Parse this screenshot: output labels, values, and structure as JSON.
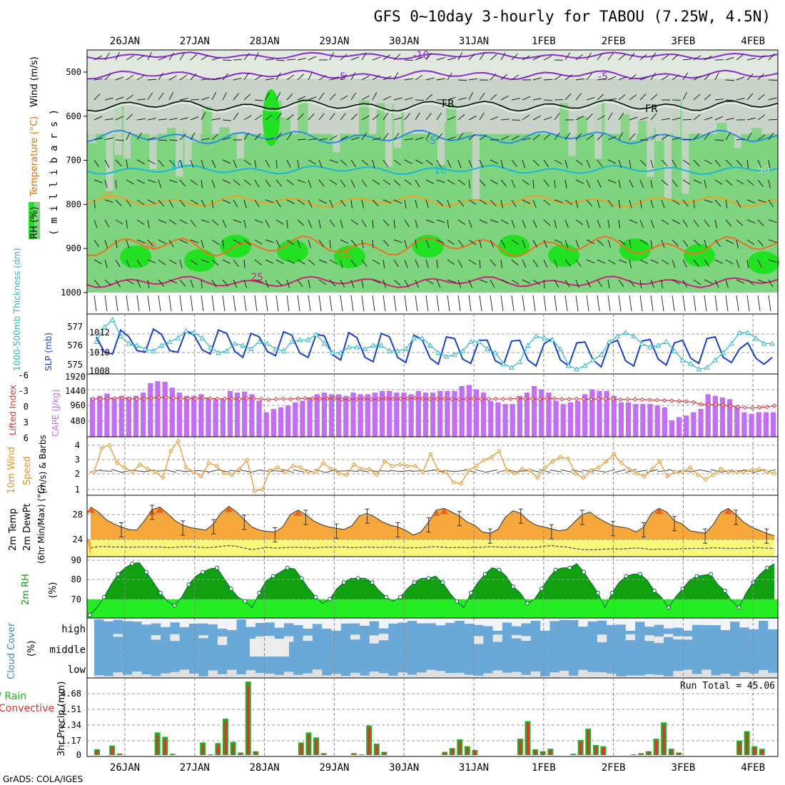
{
  "title": "GFS 0~10day 3-hourly for TABOU (7.25W, 4.5N)",
  "dates": [
    "26JAN",
    "27JAN",
    "28JAN",
    "29JAN",
    "30JAN",
    "31JAN",
    "1FEB",
    "2FEB",
    "3FEB",
    "4FEB"
  ],
  "credit": "GrADS: COLA/IGES",
  "colors": {
    "rh_dark": "#5fb85f",
    "rh_mid": "#7fd47f",
    "rh_light": "#c7d4c7",
    "rh_bright": "#22e022",
    "temp_purple": "#8a2ccf",
    "temp_black": "#000000",
    "temp_blue": "#2a8ee0",
    "temp_cyan": "#1ab7d6",
    "temp_orange": "#f0a020",
    "temp_darkorange": "#f07020",
    "temp_magenta": "#d0207a",
    "slp": "#1840d0",
    "thickness": "#2ab8c8",
    "cape": "#c070f0",
    "li": "#e03030",
    "wind": "#f0901c",
    "temp2m": "#f7a83a",
    "temp2m_peak": "#f06010",
    "dew": "#f7f77c",
    "rh2m_dark": "#10a010",
    "rh2m_light": "#22ee22",
    "cloud": "#6aa8d8",
    "cloud_gap": "#f3f3fa",
    "precip_total": "#22b022",
    "precip_conv": "#e03030"
  },
  "panels": {
    "upper": {
      "ylabel_rh": "RH (%)",
      "ylabel_temp": "Temperature (°C)",
      "ylabel_wind": "Wind (m/s)",
      "ylabel_mb": "( m i l l i b a r s )",
      "ticks": [
        "500",
        "600",
        "700",
        "800",
        "900",
        "1000"
      ],
      "contour_labels": [
        {
          "text": "-10",
          "color": "temp_purple"
        },
        {
          "text": "-5",
          "color": "temp_purple"
        },
        {
          "text": "-5",
          "color": "temp_purple"
        },
        {
          "text": "FR",
          "color": "temp_black"
        },
        {
          "text": "FR",
          "color": "temp_black"
        },
        {
          "text": "-5",
          "color": "temp_blue"
        },
        {
          "text": "10",
          "color": "temp_cyan"
        },
        {
          "text": "10",
          "color": "temp_cyan"
        },
        {
          "text": "15",
          "color": "temp_orange"
        },
        {
          "text": "15",
          "color": "temp_orange"
        },
        {
          "text": "20",
          "color": "temp_darkorange"
        },
        {
          "text": "20",
          "color": "temp_darkorange"
        },
        {
          "text": "25",
          "color": "temp_magenta"
        },
        {
          "text": "90",
          "color": "rh_light"
        },
        {
          "text": "50",
          "color": "rh_light"
        }
      ]
    },
    "slp": {
      "ylabel_thick": "1000-500mb Thickness (dm)",
      "ylabel_slp": "SLP (mb)",
      "left_ticks": [
        "577",
        "576",
        "575"
      ],
      "right_ticks": [
        "1012",
        "1010",
        "1008"
      ]
    },
    "cape": {
      "ylabel_li": "Lifted Index",
      "ylabel_cape": "CAPE (J/kg)",
      "left_ticks": [
        "-6",
        "-3",
        "0",
        "3",
        "6"
      ],
      "right_ticks": [
        "1920",
        "1440",
        "960",
        "480"
      ]
    },
    "wind": {
      "ylabel1": "10m Wind",
      "ylabel2": "Speed",
      "ylabel3": "(m/s) & Barbs",
      "ticks": [
        "4",
        "3",
        "2",
        "1"
      ]
    },
    "temp": {
      "ylabel1": "2m Temp",
      "ylabel2": "2m DewPt",
      "ylabel3": "(6hr Min/Max) (°C)",
      "ticks": [
        "28",
        "24"
      ]
    },
    "rh": {
      "ylabel1": "2m RH",
      "ylabel2": "(%)",
      "ticks": [
        "90",
        "80",
        "70"
      ]
    },
    "cloud": {
      "ylabel1": "Cloud Cover",
      "ylabel2": "(%)",
      "levels": [
        "high",
        "middle",
        "low"
      ]
    },
    "precip": {
      "ylabel1": "Total / Rain",
      "ylabel2": "Convective",
      "ylabel3": "3hr Precip (mm)",
      "ticks": [
        "4.68",
        "3.51",
        "2.34",
        "1.17",
        "0"
      ],
      "run_total": "Run Total = 45.06"
    }
  },
  "chart_data": [
    {
      "type": "line",
      "name": "SLP (mb)",
      "x_units": "3-hourly steps from 25JAN 18Z",
      "ylim": [
        1008,
        1014
      ],
      "values": [
        1012,
        1010.2,
        1010,
        1012.8,
        1012,
        1010.4,
        1010.2,
        1012.9,
        1012.3,
        1010.4,
        1010.2,
        1012.7,
        1012.2,
        1010.5,
        1010,
        1012.8,
        1012.4,
        1010.3,
        1009.6,
        1012.4,
        1012,
        1010.3,
        1009.8,
        1012.6,
        1012.2,
        1010.1,
        1009.6,
        1012.3,
        1012.1,
        1009.9,
        1009.3,
        1012.5,
        1011.9,
        1009.6,
        1009.1,
        1012.4,
        1012,
        1009.6,
        1009,
        1012.2,
        1011.7,
        1009.5,
        1008.8,
        1012,
        1011.8,
        1009.4,
        1008.9,
        1011.6,
        1011.6,
        1009.2,
        1008.7,
        1011.5,
        1011.6,
        1009.3,
        1008.6,
        1011.2,
        1011.8,
        1009.3,
        1008.6,
        1011.3,
        1011.4,
        1009.3,
        1008.5,
        1011.2,
        1011.6,
        1009.2,
        1008.6,
        1011.5,
        1011.7,
        1009.4,
        1008.7,
        1011.3,
        1011.6,
        1009.5,
        1008.9,
        1011.8,
        1012,
        1009.6,
        1009,
        1010.6,
        1011.3,
        1009.5,
        1008.8,
        1009.6
      ]
    },
    {
      "type": "line",
      "name": "1000-500mb Thickness (dm)",
      "ylim": [
        574.8,
        577.6
      ],
      "values": [
        576.4,
        577.2,
        577.6,
        576.7,
        576.3,
        576.2,
        576.0,
        575.9,
        576.2,
        576.4,
        576.6,
        577.0,
        576.9,
        576.6,
        576.1,
        575.8,
        575.9,
        576.3,
        576.2,
        576.0,
        576.4,
        576.3,
        576.0,
        575.9,
        576.4,
        576.5,
        576.5,
        576.8,
        576.3,
        575.8,
        575.8,
        576.1,
        576.1,
        576.0,
        576.2,
        576.2,
        575.9,
        575.9,
        576.0,
        576.6,
        576.6,
        576.2,
        575.8,
        575.6,
        575.7,
        575.9,
        576.4,
        576.4,
        576.0,
        575.8,
        575.2,
        575.0,
        575.3,
        576.2,
        576.7,
        576.6,
        576.5,
        576.0,
        575.1,
        574.9,
        575.1,
        575.4,
        575.7,
        576.4,
        576.7,
        576.9,
        576.7,
        576.3,
        576.1,
        576.2,
        576.4,
        575.9,
        575.4,
        575.2,
        574.9,
        575.0,
        575.4,
        575.8,
        576.3,
        576.9,
        576.9,
        576.6,
        576.3,
        576.3
      ]
    },
    {
      "type": "bar",
      "name": "CAPE (J/kg)",
      "ylim": [
        0,
        1920
      ],
      "values": [
        1200,
        1250,
        1320,
        1200,
        1250,
        1220,
        1250,
        1350,
        1640,
        1700,
        1680,
        1500,
        1350,
        1250,
        1250,
        1300,
        1200,
        1150,
        1180,
        1400,
        1350,
        1380,
        1300,
        1100,
        750,
        850,
        900,
        950,
        1050,
        1100,
        1200,
        1300,
        1350,
        1300,
        1300,
        1250,
        1350,
        1300,
        1300,
        1350,
        1400,
        1400,
        1350,
        1350,
        1300,
        1400,
        1350,
        1350,
        1400,
        1400,
        1400,
        1550,
        1580,
        1450,
        1350,
        1100,
        1050,
        1000,
        1000,
        1250,
        1350,
        1550,
        1450,
        1350,
        1100,
        1000,
        1050,
        1100,
        1300,
        1450,
        1400,
        1400,
        1250,
        1050,
        1050,
        1000,
        1000,
        1000,
        950,
        900,
        500,
        600,
        650,
        750,
        850,
        1300,
        1250,
        1200,
        1150,
        950,
        750,
        700,
        750,
        750,
        750
      ]
    },
    {
      "type": "line",
      "name": "Lifted Index",
      "ylim": [
        6,
        -6
      ],
      "values": [
        -2.5,
        -2.4,
        -2.6,
        -2.7,
        -2.8,
        -2.5,
        -2.4,
        -2.6,
        -2.8,
        -3.0,
        -3.0,
        -2.8,
        -2.6,
        -2.6,
        -2.5,
        -2.8,
        -2.6,
        -2.5,
        -2.5,
        -2.6,
        -2.4,
        -2.6,
        -2.6,
        -2.4,
        -2.2,
        -2.4,
        -2.5,
        -2.4,
        -2.6,
        -2.7,
        -2.6,
        -2.5,
        -2.6,
        -2.6,
        -2.3,
        -2.2,
        -2.4,
        -2.5,
        -2.3,
        -2.4,
        -2.6,
        -2.5,
        -2.5,
        -2.6,
        -2.8,
        -2.5,
        -2.4,
        -2.5,
        -2.6,
        -2.4,
        -2.3,
        -2.5,
        -2.6,
        -2.4,
        -2.4,
        -2.5,
        -2.4,
        -2.5,
        -2.6,
        -2.5,
        -2.5,
        -2.4,
        -2.6,
        -2.6,
        -2.4,
        -2.4,
        -2.5,
        -2.4,
        -2.3,
        -2.5,
        -2.5,
        -2.4,
        -2.2,
        -2.3,
        -2.3,
        -2.2,
        -2.1,
        -2.0,
        -1.9,
        -1.8,
        -1.6,
        -1.5,
        -1.2,
        -0.4,
        -0.2,
        -0.3,
        -0.1,
        0.3,
        0.6,
        0.9,
        1.0,
        0.8,
        0.6,
        0.2
      ]
    },
    {
      "type": "line",
      "name": "10m Wind Speed (m/s)",
      "ylim": [
        0.7,
        4.3
      ],
      "values": [
        2.2,
        3.8,
        4.0,
        2.8,
        2.5,
        2.2,
        2.7,
        2.4,
        2.2,
        1.8,
        3.6,
        4.3,
        2.5,
        2.2,
        1.9,
        2.8,
        2.6,
        2.1,
        2.0,
        2.4,
        3.0,
        0.9,
        1.0,
        2.3,
        2.5,
        2.2,
        2.6,
        2.5,
        2.2,
        2.2,
        2.8,
        2.4,
        2.1,
        2.0,
        2.7,
        2.4,
        2.4,
        2.0,
        2.9,
        2.6,
        2.7,
        2.6,
        2.6,
        2.2,
        3.4,
        2.3,
        2.2,
        1.5,
        1.4,
        2.3,
        2.6,
        3.0,
        3.2,
        3.6,
        2.3,
        2.1,
        2.4,
        2.3,
        1.8,
        2.5,
        2.9,
        3.2,
        3.1,
        2.1,
        1.8,
        2.3,
        2.5,
        2.9,
        3.4,
        2.8,
        2.4,
        2.1,
        1.9,
        2.4,
        2.9,
        1.9,
        2.2,
        2.2,
        2.5,
        2.0,
        1.7,
        2.0,
        2.4,
        2.2,
        2.2,
        2.2,
        2.3,
        2.4,
        2.2,
        2.1
      ]
    },
    {
      "type": "area",
      "name": "2m Temp (°C)",
      "ylim": [
        22,
        30
      ],
      "values": [
        29.2,
        28.4,
        27.2,
        26.5,
        26.0,
        25.6,
        25.5,
        27.0,
        28.8,
        29.2,
        28.2,
        27.0,
        26.3,
        25.9,
        25.7,
        25.5,
        26.5,
        28.3,
        29.3,
        28.4,
        27.2,
        26.0,
        25.5,
        25.3,
        25.2,
        26.0,
        28.0,
        28.7,
        28.0,
        27.0,
        26.4,
        26.0,
        25.8,
        25.6,
        26.2,
        27.8,
        28.2,
        27.6,
        26.8,
        26.3,
        26.0,
        25.5,
        24.7,
        25.2,
        26.8,
        28.7,
        29.0,
        28.4,
        27.8,
        26.8,
        26.3,
        25.2,
        25.0,
        25.6,
        27.6,
        28.6,
        28.2,
        27.0,
        26.3,
        26.0,
        25.7,
        25.4,
        25.6,
        26.8,
        28.0,
        28.4,
        27.5,
        26.8,
        26.2,
        26.0,
        25.8,
        25.2,
        26.0,
        28.2,
        29.0,
        28.4,
        27.0,
        26.5,
        25.4,
        25.2,
        25.0,
        26.3,
        28.3,
        29.0,
        28.0,
        26.8,
        26.0,
        25.5,
        25.0,
        24.6
      ]
    },
    {
      "type": "line",
      "name": "2m DewPt (°C)",
      "ylim": [
        22,
        30
      ],
      "values": [
        22.6,
        23.0,
        23.0,
        22.9,
        22.9,
        22.8,
        22.9,
        22.9,
        22.9,
        22.9,
        22.7,
        22.8,
        23.0,
        23.0,
        22.8,
        22.7,
        22.8,
        23.1,
        23.3,
        23.1,
        22.6,
        22.2,
        22.5,
        22.8,
        22.6,
        22.7,
        22.8,
        22.8,
        22.8,
        22.6,
        22.8,
        22.9,
        22.8,
        22.9,
        22.7,
        22.8,
        22.9,
        22.8,
        22.8,
        22.9,
        22.8,
        22.6,
        22.7,
        22.7,
        22.9,
        23.0,
        22.8,
        22.7,
        22.8,
        22.7,
        22.8,
        22.8,
        23.0,
        22.9,
        22.8,
        22.9,
        22.8,
        22.8,
        22.8,
        23.1,
        23.3,
        23.0,
        22.9,
        22.5,
        22.2,
        22.1,
        22.2,
        22.3,
        22.4,
        22.3,
        22.5,
        22.6,
        22.5,
        22.2,
        22.3,
        22.3,
        22.3,
        22.4,
        22.5,
        22.5,
        22.5,
        22.7,
        22.6,
        22.5,
        22.5,
        22.6,
        22.6,
        22.7,
        22.6,
        22.5
      ]
    },
    {
      "type": "area",
      "name": "2m RH (%)",
      "ylim": [
        62,
        90
      ],
      "values": [
        63.5,
        67,
        72,
        78,
        83,
        86,
        88,
        88.5,
        84,
        79,
        74,
        70,
        68,
        72,
        78,
        82,
        84,
        85.5,
        86,
        81,
        76,
        72,
        70,
        67,
        74,
        80,
        82,
        84,
        86,
        85.5,
        81,
        76,
        72,
        69,
        71,
        76,
        79,
        81,
        81,
        81,
        79,
        75,
        72,
        70,
        72,
        76,
        79,
        81,
        81,
        82,
        79,
        74,
        70,
        67,
        74,
        79,
        83,
        86,
        85,
        82,
        77,
        74,
        69,
        71,
        76,
        81,
        85,
        86,
        86,
        88,
        84,
        79,
        74,
        67,
        74,
        79,
        82,
        83,
        83,
        80,
        75,
        72,
        67,
        72,
        76,
        80,
        82,
        82.5,
        83,
        78,
        75,
        70,
        67,
        74,
        79,
        83,
        86,
        88
      ]
    },
    {
      "type": "bar",
      "name": "3hr Precip Total (mm)",
      "ylim": [
        0,
        5.85
      ],
      "values": [
        0.45,
        0,
        0.75,
        0.12,
        0,
        0,
        0,
        0,
        1.8,
        1.45,
        0.1,
        0,
        0,
        0,
        1.0,
        0.05,
        0.95,
        2.9,
        1.05,
        0.2,
        5.85,
        0.3,
        0,
        0,
        0,
        0,
        0,
        1.0,
        1.8,
        1.4,
        0.15,
        0,
        0,
        0,
        0.15,
        0.05,
        2.35,
        0.9,
        0.25,
        0,
        0,
        0,
        0,
        0,
        0,
        0,
        0.25,
        0.55,
        1.25,
        0.7,
        0.4,
        0,
        0,
        0,
        0,
        0,
        1.3,
        2.7,
        0.45,
        0.3,
        0.5,
        0,
        0,
        0.1,
        1.2,
        2.1,
        0.8,
        0.7,
        0,
        0,
        0,
        0.05,
        0.15,
        0.3,
        1.3,
        2.6,
        0.5,
        0.2,
        0,
        0,
        0,
        0,
        0,
        0,
        0,
        1.15,
        1.9,
        0.7,
        0.5,
        0
      ]
    },
    {
      "type": "bar",
      "name": "3hr Precip Convective (mm)",
      "ylim": [
        0,
        5.85
      ],
      "values": [
        0.35,
        0,
        0.6,
        0.1,
        0,
        0,
        0,
        0,
        1.6,
        1.3,
        0.05,
        0,
        0,
        0,
        0.85,
        0.05,
        0.8,
        2.7,
        0.9,
        0.15,
        5.6,
        0.25,
        0,
        0,
        0,
        0,
        0,
        0.9,
        1.6,
        1.25,
        0.1,
        0,
        0,
        0,
        0.1,
        0.05,
        2.2,
        0.8,
        0.2,
        0,
        0,
        0,
        0,
        0,
        0,
        0,
        0.2,
        0.5,
        1.1,
        0.6,
        0.35,
        0,
        0,
        0,
        0,
        0,
        1.15,
        2.55,
        0.4,
        0.25,
        0.4,
        0,
        0,
        0.05,
        1.05,
        1.95,
        0.7,
        0.6,
        0,
        0,
        0,
        0.05,
        0.1,
        0.25,
        1.15,
        2.45,
        0.45,
        0.15,
        0,
        0,
        0,
        0,
        0,
        0,
        0,
        1.0,
        1.75,
        0.6,
        0.4,
        0
      ]
    }
  ]
}
